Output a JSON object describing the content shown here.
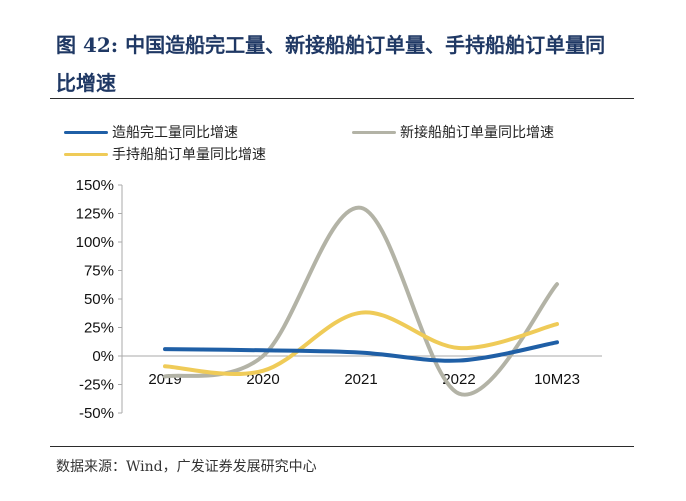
{
  "figure": {
    "title": "图 42:  中国造船完工量、新接船舶订单量、手持船舶订单量同比增速",
    "source": "数据来源：Wind，广发证券发展研究中心"
  },
  "chart_data": {
    "type": "line",
    "title": "",
    "xlabel": "",
    "ylabel": "",
    "categories": [
      "2019",
      "2020",
      "2021",
      "2022",
      "10M23"
    ],
    "y_ticks": [
      "150%",
      "125%",
      "100%",
      "75%",
      "50%",
      "25%",
      "0%",
      "-25%",
      "-50%"
    ],
    "y_tick_values": [
      150,
      125,
      100,
      75,
      50,
      25,
      0,
      -25,
      -50
    ],
    "ylim": [
      -50,
      150
    ],
    "y_unit": "%",
    "grid": false,
    "legend_position": "top",
    "series": [
      {
        "name": "造船完工量同比增速",
        "color": "#1f5fa6",
        "values": [
          6,
          5,
          3,
          -4,
          12
        ]
      },
      {
        "name": "新接船舶订单量同比增速",
        "color": "#b3b3a6",
        "values": [
          -18,
          0,
          130,
          -33,
          63
        ]
      },
      {
        "name": "手持船舶订单量同比增速",
        "color": "#efcb58",
        "values": [
          -9,
          -13,
          38,
          7,
          28
        ]
      }
    ]
  }
}
